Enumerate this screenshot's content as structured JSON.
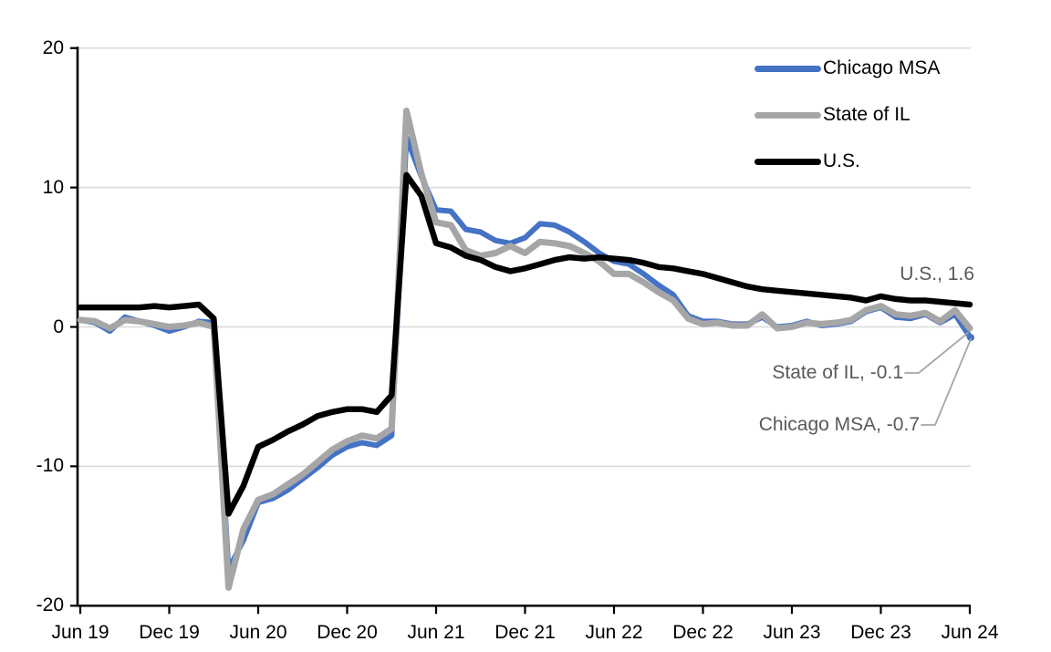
{
  "chart_data": {
    "type": "line",
    "title": "",
    "xlabel": "",
    "ylabel": "",
    "ylim": [
      -20,
      20
    ],
    "grid": "horizontal",
    "legend_position": "top-right",
    "frequency": "monthly",
    "y_ticks": [
      20,
      10,
      0,
      -10,
      -20
    ],
    "y_tick_labels": [
      "20",
      "10",
      "0",
      "-10",
      "-20"
    ],
    "x_tick_labels": [
      "Jun 19",
      "Dec 19",
      "Jun 20",
      "Dec 20",
      "Jun 21",
      "Dec 21",
      "Jun 22",
      "Dec 22",
      "Jun 23",
      "Dec 23",
      "Jun 24"
    ],
    "months": [
      "2019-06",
      "2019-07",
      "2019-08",
      "2019-09",
      "2019-10",
      "2019-11",
      "2019-12",
      "2020-01",
      "2020-02",
      "2020-03",
      "2020-04",
      "2020-05",
      "2020-06",
      "2020-07",
      "2020-08",
      "2020-09",
      "2020-10",
      "2020-11",
      "2020-12",
      "2021-01",
      "2021-02",
      "2021-03",
      "2021-04",
      "2021-05",
      "2021-06",
      "2021-07",
      "2021-08",
      "2021-09",
      "2021-10",
      "2021-11",
      "2021-12",
      "2022-01",
      "2022-02",
      "2022-03",
      "2022-04",
      "2022-05",
      "2022-06",
      "2022-07",
      "2022-08",
      "2022-09",
      "2022-10",
      "2022-11",
      "2022-12",
      "2023-01",
      "2023-02",
      "2023-03",
      "2023-04",
      "2023-05",
      "2023-06",
      "2023-07",
      "2023-08",
      "2023-09",
      "2023-10",
      "2023-11",
      "2023-12",
      "2024-01",
      "2024-02",
      "2024-03",
      "2024-04",
      "2024-05",
      "2024-06"
    ],
    "series": [
      {
        "name": "Chicago MSA",
        "color": "#4472C4",
        "end_value": -0.7,
        "values": [
          0.5,
          0.3,
          -0.3,
          0.7,
          0.4,
          0.1,
          -0.3,
          0.0,
          0.4,
          0.3,
          -17.4,
          -15.3,
          -12.6,
          -12.3,
          -11.7,
          -10.9,
          -10.1,
          -9.2,
          -8.6,
          -8.3,
          -8.5,
          -7.8,
          13.6,
          10.8,
          8.4,
          8.3,
          7.0,
          6.8,
          6.2,
          6.0,
          6.4,
          7.4,
          7.3,
          6.8,
          6.1,
          5.3,
          4.7,
          4.5,
          3.8,
          3.0,
          2.3,
          0.8,
          0.4,
          0.4,
          0.2,
          0.2,
          0.7,
          0.0,
          0.1,
          0.4,
          0.1,
          0.2,
          0.4,
          1.1,
          1.4,
          0.7,
          0.6,
          0.9,
          0.3,
          0.9,
          -0.7
        ]
      },
      {
        "name": "State of IL",
        "color": "#A6A6A6",
        "end_value": -0.1,
        "values": [
          0.5,
          0.4,
          -0.1,
          0.5,
          0.4,
          0.2,
          0.0,
          0.1,
          0.3,
          0.0,
          -18.7,
          -14.5,
          -12.4,
          -12.0,
          -11.3,
          -10.6,
          -9.7,
          -8.8,
          -8.2,
          -7.8,
          -8.0,
          -7.3,
          15.5,
          11.0,
          7.5,
          7.3,
          5.5,
          5.1,
          5.3,
          5.8,
          5.3,
          6.1,
          6.0,
          5.8,
          5.3,
          4.7,
          3.8,
          3.8,
          3.2,
          2.5,
          1.9,
          0.6,
          0.2,
          0.3,
          0.1,
          0.1,
          0.9,
          -0.1,
          0.0,
          0.3,
          0.2,
          0.3,
          0.5,
          1.2,
          1.5,
          0.9,
          0.8,
          1.0,
          0.4,
          1.2,
          -0.1
        ]
      },
      {
        "name": "U.S.",
        "color": "#000000",
        "end_value": 1.6,
        "values": [
          1.4,
          1.4,
          1.4,
          1.4,
          1.4,
          1.5,
          1.4,
          1.5,
          1.6,
          0.6,
          -13.4,
          -11.4,
          -8.6,
          -8.1,
          -7.5,
          -7.0,
          -6.4,
          -6.1,
          -5.9,
          -5.9,
          -6.1,
          -4.9,
          10.9,
          9.4,
          6.0,
          5.7,
          5.1,
          4.8,
          4.3,
          4.0,
          4.2,
          4.5,
          4.8,
          5.0,
          4.9,
          5.0,
          4.9,
          4.8,
          4.6,
          4.3,
          4.2,
          4.0,
          3.8,
          3.5,
          3.2,
          2.9,
          2.7,
          2.6,
          2.5,
          2.4,
          2.3,
          2.2,
          2.1,
          1.9,
          2.2,
          2.0,
          1.9,
          1.9,
          1.8,
          1.7,
          1.6
        ]
      }
    ],
    "annotations": [
      {
        "text": "U.S., 1.6"
      },
      {
        "text": "State of IL, -0.1"
      },
      {
        "text": "Chicago MSA, -0.7"
      }
    ],
    "colors": {
      "background": "#FFFFFF",
      "grid": "#D9D9D9",
      "axis": "#000000",
      "annotation_text": "#595959",
      "leader_line": "#A6A6A6"
    }
  }
}
